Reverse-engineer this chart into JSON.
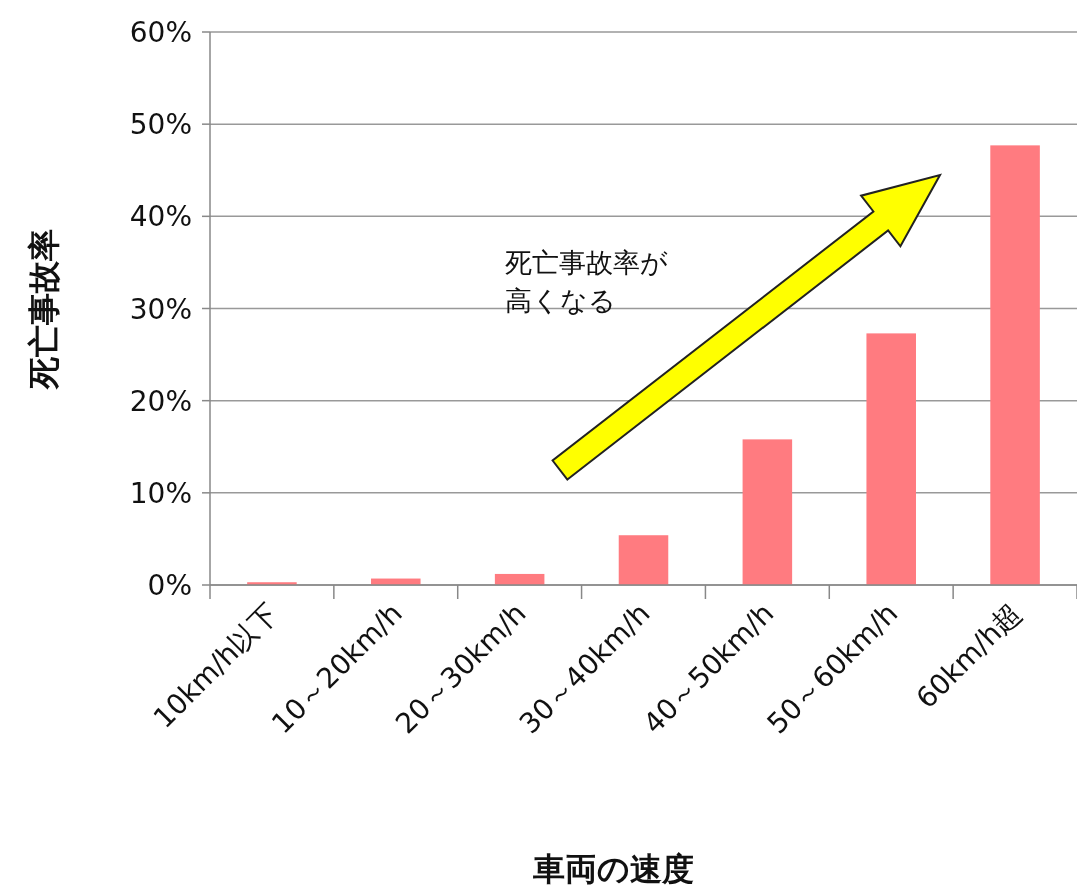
{
  "chart_data": {
    "type": "bar",
    "xlabel": "車両の速度",
    "ylabel": "死亡事故率",
    "categories": [
      "10km/h以下",
      "10～20km/h",
      "20～30km/h",
      "30～40km/h",
      "40～50km/h",
      "50～60km/h",
      "60km/h超"
    ],
    "values": [
      0.3,
      0.7,
      1.2,
      5.4,
      15.8,
      27.3,
      47.7
    ],
    "color": "#ff7b80",
    "ylim": [
      0,
      60
    ],
    "yticks": [
      {
        "value": 0,
        "label": "0%"
      },
      {
        "value": 10,
        "label": "10%"
      },
      {
        "value": 20,
        "label": "20%"
      },
      {
        "value": 30,
        "label": "30%"
      },
      {
        "value": 40,
        "label": "40%"
      },
      {
        "value": 50,
        "label": "50%"
      },
      {
        "value": 60,
        "label": "60%"
      }
    ],
    "grid": "y",
    "annotations": [
      "死亡事故率が",
      "高くなる"
    ]
  }
}
